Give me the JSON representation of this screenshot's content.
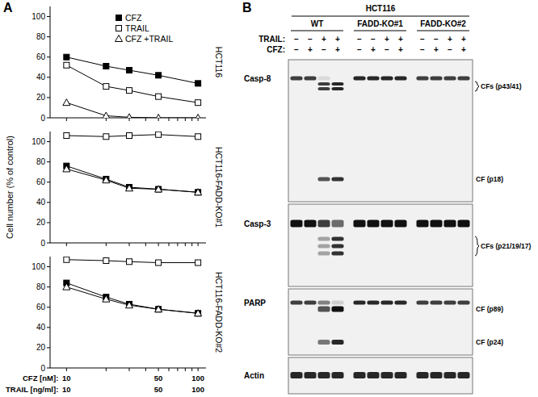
{
  "panel_a": {
    "label": "A",
    "ylabel": "Cell number (% of control)",
    "dose_rows": [
      {
        "label": "CFZ [nM]:",
        "values": [
          10,
          50,
          100
        ]
      },
      {
        "label": "TRAIL [ng/ml]:",
        "values": [
          10,
          50,
          100
        ]
      }
    ]
  },
  "chart_data": [
    {
      "type": "line",
      "title": "HCT116",
      "x": [
        10,
        20,
        30,
        50,
        100
      ],
      "xlim": [
        7.5,
        115
      ],
      "xticks": [
        10,
        20,
        30,
        40,
        50,
        60,
        70,
        80,
        90,
        100
      ],
      "log": "x",
      "ylim": [
        0,
        110
      ],
      "yticks": [
        0,
        20,
        40,
        60,
        80,
        100
      ],
      "tick_labels": "y",
      "legend": "top-right",
      "series": [
        {
          "name": "CFZ",
          "color": "#000000",
          "marker": "square-filled",
          "values": [
            60,
            51,
            47,
            42,
            34
          ]
        },
        {
          "name": "TRAIL",
          "color": "#000000",
          "marker": "square-open",
          "values": [
            52,
            31,
            27,
            21,
            15
          ]
        },
        {
          "name": "CFZ +TRAIL",
          "color": "#000000",
          "marker": "triangle-open",
          "values": [
            15,
            2,
            0.5,
            0,
            0
          ]
        }
      ]
    },
    {
      "type": "line",
      "title": "HCT116-FADD-KO#1",
      "x": [
        10,
        20,
        30,
        50,
        100
      ],
      "xlim": [
        7.5,
        115
      ],
      "xticks": [
        10,
        20,
        30,
        40,
        50,
        60,
        70,
        80,
        90,
        100
      ],
      "log": "x",
      "ylim": [
        0,
        110
      ],
      "yticks": [
        0,
        20,
        40,
        60,
        80,
        100
      ],
      "tick_labels": "y",
      "series": [
        {
          "color": "#000000",
          "marker": "square-filled",
          "values": [
            76,
            63,
            55,
            53,
            50
          ]
        },
        {
          "color": "#000000",
          "marker": "square-open",
          "values": [
            106,
            105,
            106,
            107,
            105
          ]
        },
        {
          "color": "#000000",
          "marker": "triangle-open",
          "values": [
            73,
            62,
            54,
            53,
            50
          ]
        }
      ]
    },
    {
      "type": "line",
      "title": "HCT116-FADD-KO#2",
      "x": [
        10,
        20,
        30,
        50,
        100
      ],
      "xlim": [
        7.5,
        115
      ],
      "xticks": [
        10,
        20,
        30,
        40,
        50,
        60,
        70,
        80,
        90,
        100
      ],
      "log": "x",
      "ylim": [
        0,
        110
      ],
      "yticks": [
        0,
        20,
        40,
        60,
        80,
        100
      ],
      "tick_labels": "y",
      "series": [
        {
          "color": "#000000",
          "marker": "square-filled",
          "values": [
            84,
            70,
            63,
            58,
            54
          ]
        },
        {
          "color": "#000000",
          "marker": "square-open",
          "values": [
            107,
            106,
            105,
            104,
            104
          ]
        },
        {
          "color": "#000000",
          "marker": "triangle-open",
          "values": [
            80,
            68,
            62,
            58,
            54
          ]
        }
      ]
    }
  ],
  "blot": {
    "label": "B",
    "cell_line": "HCT116",
    "groups": [
      "WT",
      "FADD-KO#1",
      "FADD-KO#2"
    ],
    "conditions": [
      {
        "label": "TRAIL:",
        "signs": [
          "−",
          "−",
          "+",
          "+",
          "−",
          "−",
          "+",
          "+",
          "−",
          "−",
          "+",
          "+"
        ]
      },
      {
        "label": "CFZ:",
        "signs": [
          "−",
          "+",
          "−",
          "+",
          "−",
          "+",
          "−",
          "+",
          "−",
          "+",
          "−",
          "+"
        ]
      }
    ],
    "rows": [
      {
        "label": "Casp-8",
        "bands": [
          {
            "intensity": [
              0.8,
              0.8,
              0.1,
              0,
              0.9,
              0.9,
              0.9,
              0.9,
              0.8,
              0.8,
              0.8,
              0.8
            ]
          },
          {
            "label": "CFs (p43/41)",
            "intensity": [
              0,
              0,
              0.8,
              0.9,
              0,
              0,
              0,
              0,
              0,
              0,
              0,
              0
            ]
          },
          {
            "label": "CF (p18)",
            "intensity": [
              0,
              0,
              0.7,
              0.85,
              0,
              0,
              0,
              0,
              0,
              0,
              0,
              0
            ]
          }
        ]
      },
      {
        "label": "Casp-3",
        "bands": [
          {
            "intensity": [
              1,
              1,
              0.8,
              0.6,
              1,
              1,
              1,
              1,
              1,
              1,
              1,
              1
            ]
          },
          {
            "label": "CFs (p21/19/17)",
            "intensity": [
              0,
              0,
              0.35,
              0.85,
              0,
              0,
              0,
              0,
              0,
              0,
              0,
              0
            ]
          }
        ]
      },
      {
        "label": "PARP",
        "bands": [
          {
            "intensity": [
              0.8,
              0.8,
              0.5,
              0.15,
              0.9,
              0.9,
              0.9,
              0.9,
              0.8,
              0.8,
              0.8,
              0.8
            ]
          },
          {
            "label": "CF (p89)",
            "intensity": [
              0,
              0,
              0.7,
              1,
              0,
              0,
              0,
              0,
              0,
              0,
              0,
              0
            ]
          },
          {
            "label": "CF (p24)",
            "intensity": [
              0,
              0,
              0.55,
              0.9,
              0,
              0,
              0,
              0,
              0,
              0,
              0,
              0
            ]
          }
        ]
      },
      {
        "label": "Actin",
        "bands": [
          {
            "intensity": [
              0.9,
              0.9,
              0.9,
              0.9,
              0.9,
              0.9,
              0.9,
              0.9,
              0.9,
              0.9,
              0.9,
              0.9
            ]
          }
        ]
      }
    ]
  }
}
